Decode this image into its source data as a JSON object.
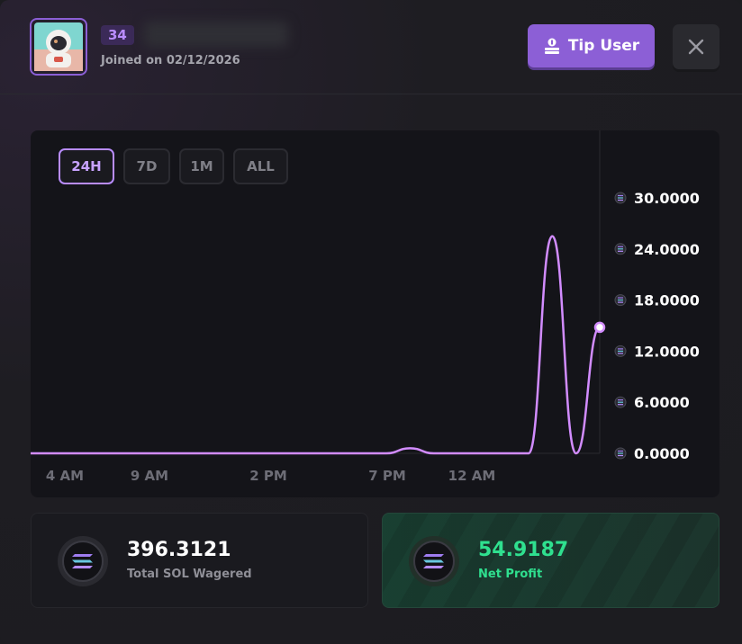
{
  "profile": {
    "level": "34",
    "joined": "Joined on 02/12/2026"
  },
  "actions": {
    "tip_label": "Tip User"
  },
  "chart": {
    "tabs": [
      {
        "label": "24H",
        "active": true
      },
      {
        "label": "7D",
        "active": false
      },
      {
        "label": "1M",
        "active": false
      },
      {
        "label": "ALL",
        "active": false
      }
    ]
  },
  "chart_data": {
    "type": "line",
    "x_ticks": [
      "4 AM",
      "9 AM",
      "2 PM",
      "7 PM",
      "12 AM"
    ],
    "y_ticks": [
      "0.0000",
      "6.0000",
      "12.0000",
      "18.0000",
      "24.0000",
      "30.0000"
    ],
    "ylim": [
      0,
      30
    ],
    "series": [
      {
        "x": [
          0,
          1,
          2,
          3,
          4,
          5,
          6,
          7,
          8,
          9,
          10,
          11,
          12,
          13,
          14,
          15,
          16,
          17,
          18,
          19,
          20,
          21,
          22,
          23,
          24
        ],
        "values": [
          0,
          0,
          0,
          0,
          0,
          0,
          0,
          0,
          0,
          0,
          0,
          0,
          0,
          0,
          0,
          0,
          0.6,
          0,
          0,
          0,
          0,
          0,
          25.5,
          0,
          14.8
        ]
      }
    ],
    "color": "#d28cff",
    "grid": false
  },
  "stats": {
    "wagered": {
      "value": "396.3121",
      "label": "Total SOL Wagered"
    },
    "profit": {
      "value": "54.9187",
      "label": "Net Profit"
    }
  }
}
